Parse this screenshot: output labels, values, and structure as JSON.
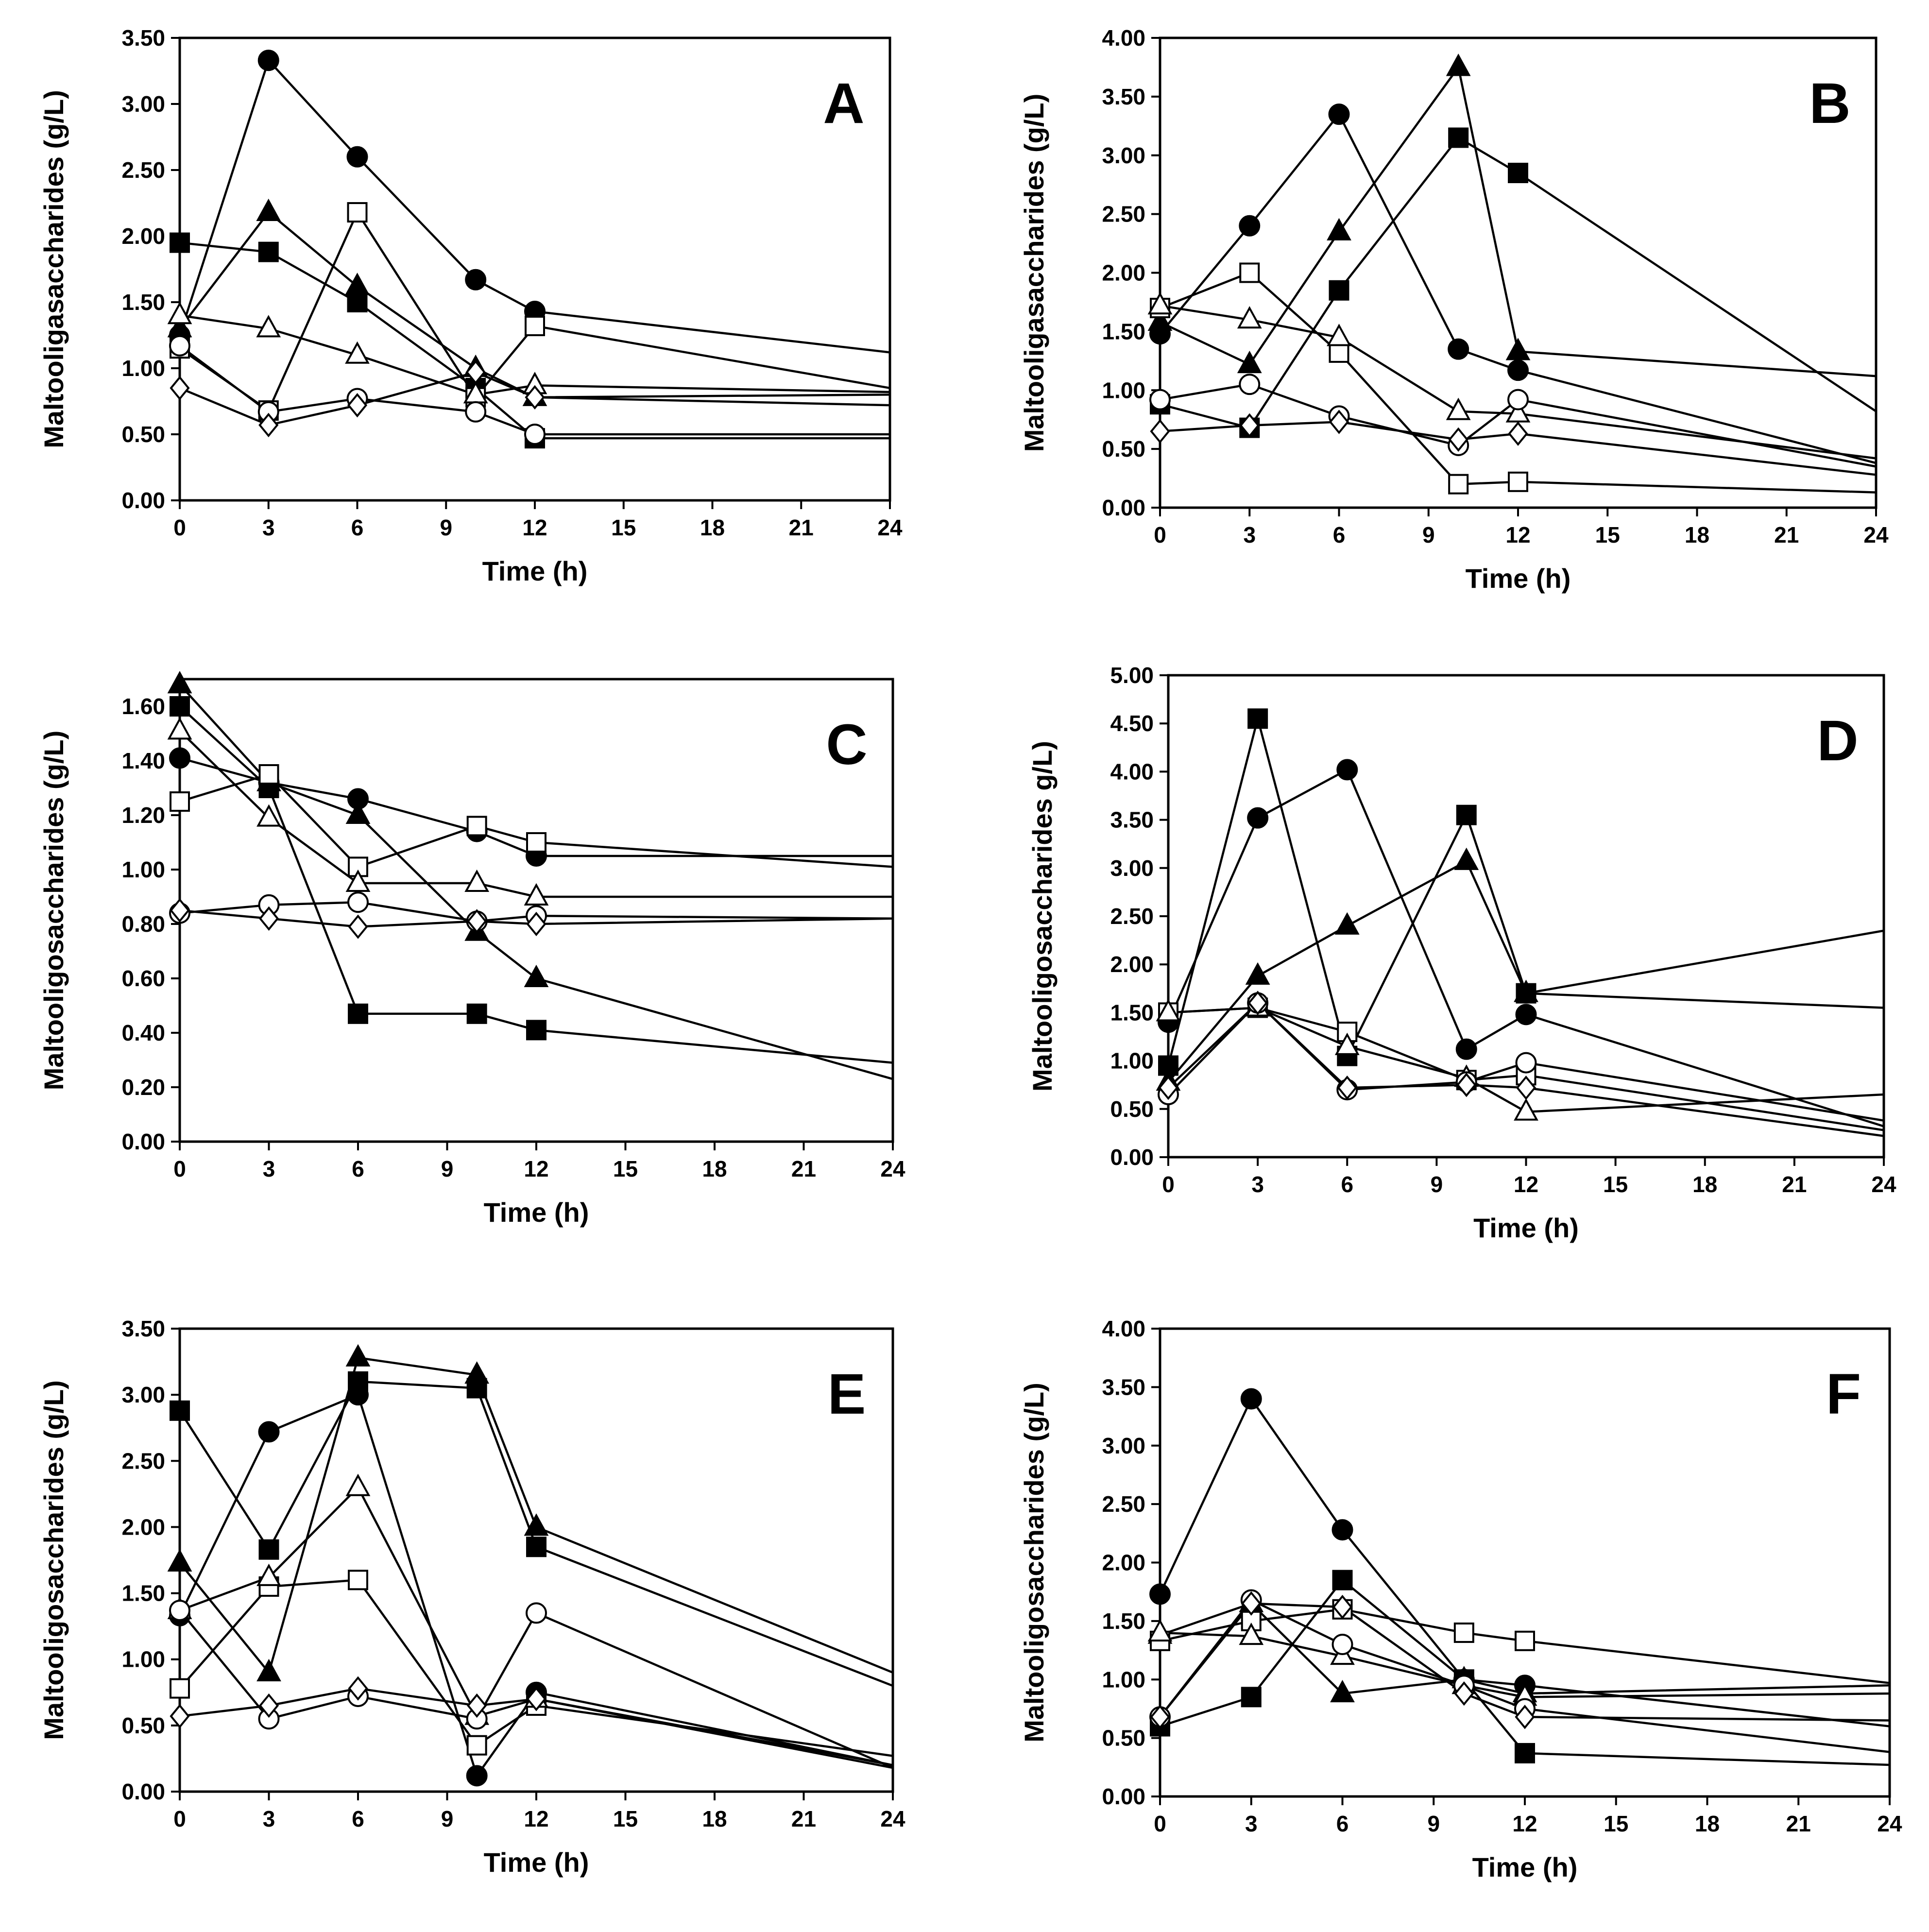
{
  "markers": {
    "filled-circle": {
      "shape": "circle",
      "filled": true
    },
    "filled-triangle": {
      "shape": "triangle",
      "filled": true
    },
    "filled-square": {
      "shape": "square",
      "filled": true
    },
    "open-square": {
      "shape": "square",
      "filled": false
    },
    "open-triangle": {
      "shape": "triangle",
      "filled": false
    },
    "open-circle": {
      "shape": "circle",
      "filled": false
    },
    "open-diamond": {
      "shape": "diamond",
      "filled": false
    }
  },
  "chart_data": [
    {
      "panel": "A",
      "type": "line",
      "xlabel": "Time (h)",
      "ylabel": "Maltooligasaccharides (g/L)",
      "xlim": [
        0,
        24
      ],
      "ylim": [
        0,
        3.5
      ],
      "xticks": [
        "0",
        "3",
        "6",
        "9",
        "12",
        "15",
        "18",
        "21",
        "24"
      ],
      "yticks": [
        "0.00",
        "0.50",
        "1.00",
        "1.50",
        "2.00",
        "2.50",
        "3.00",
        "3.50"
      ],
      "series": [
        {
          "marker": "filled-circle",
          "x": [
            0,
            3,
            6,
            10,
            12,
            24
          ],
          "y": [
            1.25,
            3.33,
            2.6,
            1.67,
            1.43,
            1.12
          ]
        },
        {
          "marker": "filled-triangle",
          "x": [
            0,
            3,
            6,
            10,
            12,
            24
          ],
          "y": [
            1.3,
            2.18,
            1.62,
            1.0,
            0.78,
            0.8
          ]
        },
        {
          "marker": "filled-square",
          "x": [
            0,
            3,
            6,
            10,
            12,
            24
          ],
          "y": [
            1.95,
            1.88,
            1.5,
            0.85,
            0.47,
            0.47
          ]
        },
        {
          "marker": "open-square",
          "x": [
            0,
            3,
            6,
            10,
            12,
            24
          ],
          "y": [
            1.15,
            0.68,
            2.18,
            0.78,
            1.32,
            0.85
          ]
        },
        {
          "marker": "open-triangle",
          "x": [
            0,
            3,
            6,
            10,
            12,
            24
          ],
          "y": [
            1.4,
            1.3,
            1.1,
            0.8,
            0.87,
            0.82
          ]
        },
        {
          "marker": "open-circle",
          "x": [
            0,
            3,
            6,
            10,
            12,
            24
          ],
          "y": [
            1.17,
            0.67,
            0.77,
            0.67,
            0.5,
            0.5
          ]
        },
        {
          "marker": "open-diamond",
          "x": [
            0,
            3,
            6,
            10,
            12,
            24
          ],
          "y": [
            0.85,
            0.57,
            0.72,
            0.97,
            0.78,
            0.72
          ]
        }
      ]
    },
    {
      "panel": "B",
      "type": "line",
      "xlabel": "Time (h)",
      "ylabel": "Maltooligasaccharides (g/L)",
      "xlim": [
        0,
        24
      ],
      "ylim": [
        0,
        4.0
      ],
      "xticks": [
        "0",
        "3",
        "6",
        "9",
        "12",
        "15",
        "18",
        "21",
        "24"
      ],
      "yticks": [
        "0.00",
        "0.50",
        "1.00",
        "1.50",
        "2.00",
        "2.50",
        "3.00",
        "3.50",
        "4.00"
      ],
      "series": [
        {
          "marker": "filled-circle",
          "x": [
            0,
            3,
            6,
            10,
            12,
            24
          ],
          "y": [
            1.48,
            2.4,
            3.35,
            1.35,
            1.17,
            0.38
          ]
        },
        {
          "marker": "filled-triangle",
          "x": [
            0,
            3,
            6,
            10,
            12,
            24
          ],
          "y": [
            1.58,
            1.22,
            2.35,
            3.75,
            1.33,
            1.12
          ]
        },
        {
          "marker": "filled-square",
          "x": [
            0,
            3,
            6,
            10,
            12,
            24
          ],
          "y": [
            0.88,
            0.68,
            1.85,
            3.15,
            2.85,
            0.82
          ]
        },
        {
          "marker": "open-square",
          "x": [
            0,
            3,
            6,
            10,
            12,
            24
          ],
          "y": [
            1.7,
            2.0,
            1.32,
            0.2,
            0.22,
            0.13
          ]
        },
        {
          "marker": "open-triangle",
          "x": [
            0,
            3,
            6,
            10,
            12,
            24
          ],
          "y": [
            1.72,
            1.6,
            1.45,
            0.82,
            0.8,
            0.42
          ]
        },
        {
          "marker": "open-circle",
          "x": [
            0,
            3,
            6,
            10,
            12,
            24
          ],
          "y": [
            0.92,
            1.05,
            0.78,
            0.53,
            0.92,
            0.35
          ]
        },
        {
          "marker": "open-diamond",
          "x": [
            0,
            3,
            6,
            10,
            12,
            24
          ],
          "y": [
            0.65,
            0.7,
            0.73,
            0.58,
            0.63,
            0.28
          ]
        }
      ]
    },
    {
      "panel": "C",
      "type": "line",
      "xlabel": "Time (h)",
      "ylabel": "Maltooligosaccharides (g/L)",
      "xlim": [
        0,
        24
      ],
      "ylim": [
        0,
        1.7
      ],
      "yticks_values": [
        0,
        0.2,
        0.4,
        0.6,
        0.8,
        1.0,
        1.2,
        1.4,
        1.6
      ],
      "xticks": [
        "0",
        "3",
        "6",
        "9",
        "12",
        "15",
        "18",
        "21",
        "24"
      ],
      "yticks": [
        "0.00",
        "0.20",
        "0.40",
        "0.60",
        "0.80",
        "1.00",
        "1.20",
        "1.40",
        "1.60"
      ],
      "series": [
        {
          "marker": "filled-circle",
          "x": [
            0,
            3,
            6,
            10,
            12,
            24
          ],
          "y": [
            1.41,
            1.32,
            1.26,
            1.14,
            1.05,
            1.05
          ]
        },
        {
          "marker": "filled-triangle",
          "x": [
            0,
            3,
            6,
            10,
            12,
            24
          ],
          "y": [
            1.68,
            1.32,
            1.2,
            0.77,
            0.6,
            0.23
          ]
        },
        {
          "marker": "filled-square",
          "x": [
            0,
            3,
            6,
            10,
            12,
            24
          ],
          "y": [
            1.6,
            1.3,
            0.47,
            0.47,
            0.41,
            0.29
          ]
        },
        {
          "marker": "open-square",
          "x": [
            0,
            3,
            6,
            10,
            12,
            24
          ],
          "y": [
            1.25,
            1.35,
            1.01,
            1.16,
            1.1,
            1.01
          ]
        },
        {
          "marker": "open-triangle",
          "x": [
            0,
            3,
            6,
            10,
            12,
            24
          ],
          "y": [
            1.51,
            1.19,
            0.95,
            0.95,
            0.9,
            0.9
          ]
        },
        {
          "marker": "open-circle",
          "x": [
            0,
            3,
            6,
            10,
            12,
            24
          ],
          "y": [
            0.84,
            0.87,
            0.88,
            0.81,
            0.83,
            0.82
          ]
        },
        {
          "marker": "open-diamond",
          "x": [
            0,
            3,
            6,
            10,
            12,
            24
          ],
          "y": [
            0.85,
            0.82,
            0.79,
            0.81,
            0.8,
            0.82
          ]
        }
      ]
    },
    {
      "panel": "D",
      "type": "line",
      "xlabel": "Time (h)",
      "ylabel": "Maltooligosaccharides g/L)",
      "xlim": [
        0,
        24
      ],
      "ylim": [
        0,
        5.0
      ],
      "xticks": [
        "0",
        "3",
        "6",
        "9",
        "12",
        "15",
        "18",
        "21",
        "24"
      ],
      "yticks": [
        "0.00",
        "0.50",
        "1.00",
        "1.50",
        "2.00",
        "2.50",
        "3.00",
        "3.50",
        "4.00",
        "4.50",
        "5.00"
      ],
      "series": [
        {
          "marker": "filled-circle",
          "x": [
            0,
            3,
            6,
            10,
            12,
            24
          ],
          "y": [
            1.4,
            3.52,
            4.02,
            1.12,
            1.48,
            0.32
          ]
        },
        {
          "marker": "filled-triangle",
          "x": [
            0,
            3,
            6,
            10,
            12,
            24
          ],
          "y": [
            0.78,
            1.88,
            2.4,
            3.07,
            1.7,
            2.35
          ]
        },
        {
          "marker": "filled-square",
          "x": [
            0,
            3,
            6,
            10,
            12,
            24
          ],
          "y": [
            0.95,
            4.55,
            1.05,
            3.55,
            1.7,
            1.55
          ]
        },
        {
          "marker": "open-square",
          "x": [
            0,
            3,
            6,
            10,
            12,
            24
          ],
          "y": [
            1.5,
            1.55,
            1.3,
            0.8,
            0.85,
            0.28
          ]
        },
        {
          "marker": "open-triangle",
          "x": [
            0,
            3,
            6,
            10,
            12,
            24
          ],
          "y": [
            1.5,
            1.55,
            1.15,
            0.82,
            0.47,
            0.65
          ]
        },
        {
          "marker": "open-circle",
          "x": [
            0,
            3,
            6,
            10,
            12,
            24
          ],
          "y": [
            0.65,
            1.6,
            0.7,
            0.78,
            0.98,
            0.38
          ]
        },
        {
          "marker": "open-diamond",
          "x": [
            0,
            3,
            6,
            10,
            12,
            24
          ],
          "y": [
            0.72,
            1.6,
            0.72,
            0.75,
            0.72,
            0.22
          ]
        }
      ]
    },
    {
      "panel": "E",
      "type": "line",
      "xlabel": "Time (h)",
      "ylabel": "Maltooligosaccharides (g/L)",
      "xlim": [
        0,
        24
      ],
      "ylim": [
        0,
        3.5
      ],
      "xticks": [
        "0",
        "3",
        "6",
        "9",
        "12",
        "15",
        "18",
        "21",
        "24"
      ],
      "yticks": [
        "0.00",
        "0.50",
        "1.00",
        "1.50",
        "2.00",
        "2.50",
        "3.00",
        "3.50"
      ],
      "series": [
        {
          "marker": "filled-circle",
          "x": [
            0,
            3,
            6,
            10,
            12,
            24
          ],
          "y": [
            1.33,
            2.72,
            3.0,
            0.12,
            0.75,
            0.2
          ]
        },
        {
          "marker": "filled-triangle",
          "x": [
            0,
            3,
            6,
            10,
            12,
            24
          ],
          "y": [
            1.73,
            0.9,
            3.28,
            3.15,
            2.0,
            0.9
          ]
        },
        {
          "marker": "filled-square",
          "x": [
            0,
            3,
            6,
            10,
            12,
            24
          ],
          "y": [
            2.88,
            1.83,
            3.1,
            3.05,
            1.85,
            0.8
          ]
        },
        {
          "marker": "open-square",
          "x": [
            0,
            3,
            6,
            10,
            12,
            24
          ],
          "y": [
            0.78,
            1.55,
            1.6,
            0.35,
            0.65,
            0.27
          ]
        },
        {
          "marker": "open-triangle",
          "x": [
            0,
            3,
            6,
            10,
            12,
            24
          ],
          "y": [
            1.37,
            1.62,
            2.3,
            0.57,
            0.7,
            0.2
          ]
        },
        {
          "marker": "open-circle",
          "x": [
            0,
            3,
            6,
            10,
            12,
            24
          ],
          "y": [
            1.37,
            0.55,
            0.72,
            0.55,
            1.35,
            0.18
          ]
        },
        {
          "marker": "open-diamond",
          "x": [
            0,
            3,
            6,
            10,
            12,
            24
          ],
          "y": [
            0.57,
            0.65,
            0.78,
            0.65,
            0.7,
            0.18
          ]
        }
      ]
    },
    {
      "panel": "F",
      "type": "line",
      "xlabel": "Time (h)",
      "ylabel": "Maltooligosaccharides (g/L)",
      "xlim": [
        0,
        24
      ],
      "ylim": [
        0,
        4.0
      ],
      "xticks": [
        "0",
        "3",
        "6",
        "9",
        "12",
        "15",
        "18",
        "21",
        "24"
      ],
      "yticks": [
        "0.00",
        "0.50",
        "1.00",
        "1.50",
        "2.00",
        "2.50",
        "3.00",
        "3.50",
        "4.00"
      ],
      "series": [
        {
          "marker": "filled-circle",
          "x": [
            0,
            3,
            6,
            10,
            12,
            24
          ],
          "y": [
            1.73,
            3.4,
            2.28,
            1.0,
            0.95,
            0.6
          ]
        },
        {
          "marker": "filled-triangle",
          "x": [
            0,
            3,
            6,
            10,
            12,
            24
          ],
          "y": [
            1.38,
            1.65,
            0.88,
            1.0,
            0.88,
            0.95
          ]
        },
        {
          "marker": "filled-square",
          "x": [
            0,
            3,
            6,
            10,
            12,
            24
          ],
          "y": [
            0.6,
            0.85,
            1.85,
            1.0,
            0.37,
            0.27
          ]
        },
        {
          "marker": "open-square",
          "x": [
            0,
            3,
            6,
            10,
            12,
            24
          ],
          "y": [
            1.33,
            1.5,
            1.6,
            1.4,
            1.33,
            0.97
          ]
        },
        {
          "marker": "open-triangle",
          "x": [
            0,
            3,
            6,
            10,
            12,
            24
          ],
          "y": [
            1.4,
            1.37,
            1.2,
            0.95,
            0.85,
            0.88
          ]
        },
        {
          "marker": "open-circle",
          "x": [
            0,
            3,
            6,
            10,
            12,
            24
          ],
          "y": [
            0.68,
            1.68,
            1.3,
            0.95,
            0.75,
            0.38
          ]
        },
        {
          "marker": "open-diamond",
          "x": [
            0,
            3,
            6,
            10,
            12,
            24
          ],
          "y": [
            0.68,
            1.65,
            1.62,
            0.88,
            0.68,
            0.65
          ]
        }
      ]
    }
  ]
}
